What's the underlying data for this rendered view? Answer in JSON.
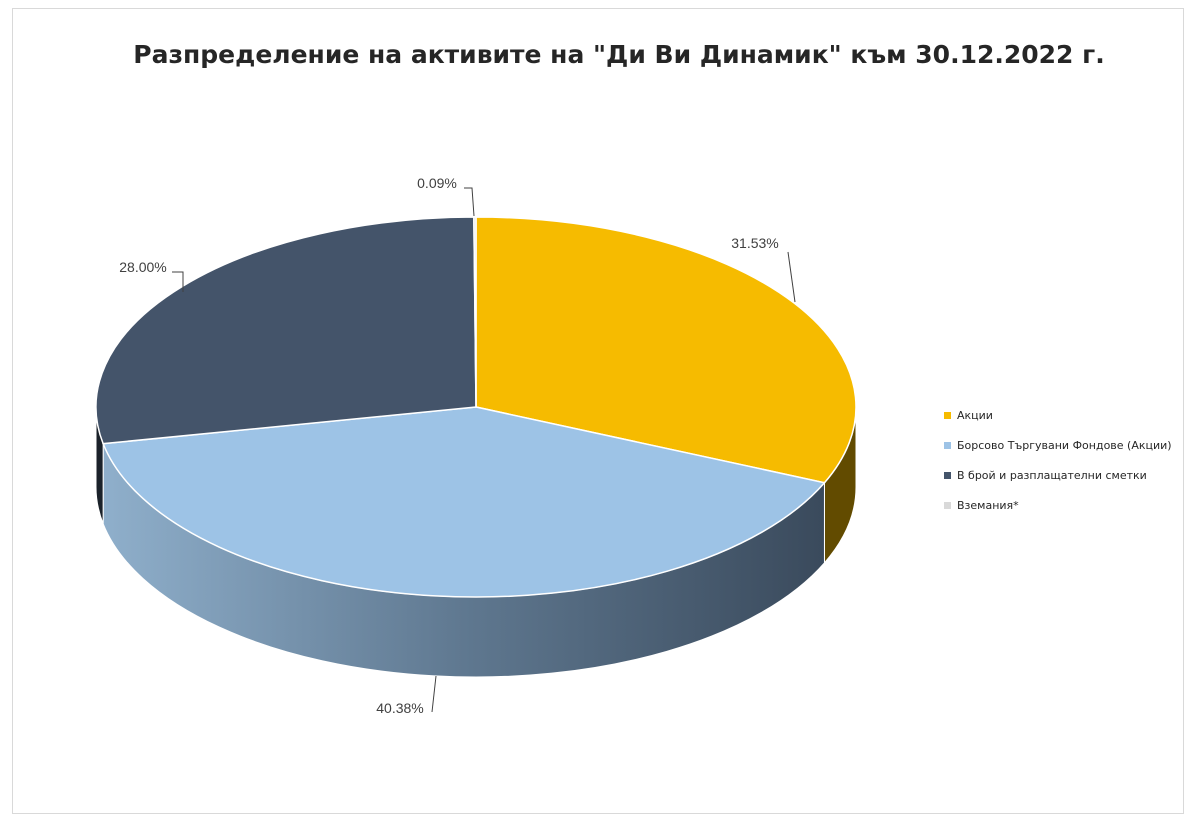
{
  "chart_data": {
    "type": "pie",
    "title": "Разпределение на активите на \"Ди Ви Динамик\" към 30.12.2022 г.",
    "three_d": true,
    "legend_position": "right",
    "slices": [
      {
        "name": "Акции",
        "value": 31.53,
        "label": "31.53%",
        "color": "#F6BB00"
      },
      {
        "name": "Борсово Търгувани Фондове (Акции)",
        "value": 40.38,
        "label": "40.38%",
        "color": "#9DC3E6"
      },
      {
        "name": "В брой и разплащателни сметки",
        "value": 28.0,
        "label": "28.00%",
        "color": "#44546A"
      },
      {
        "name": "Вземания*",
        "value": 0.09,
        "label": "0.09%",
        "color": "#D9D9D9"
      }
    ]
  }
}
